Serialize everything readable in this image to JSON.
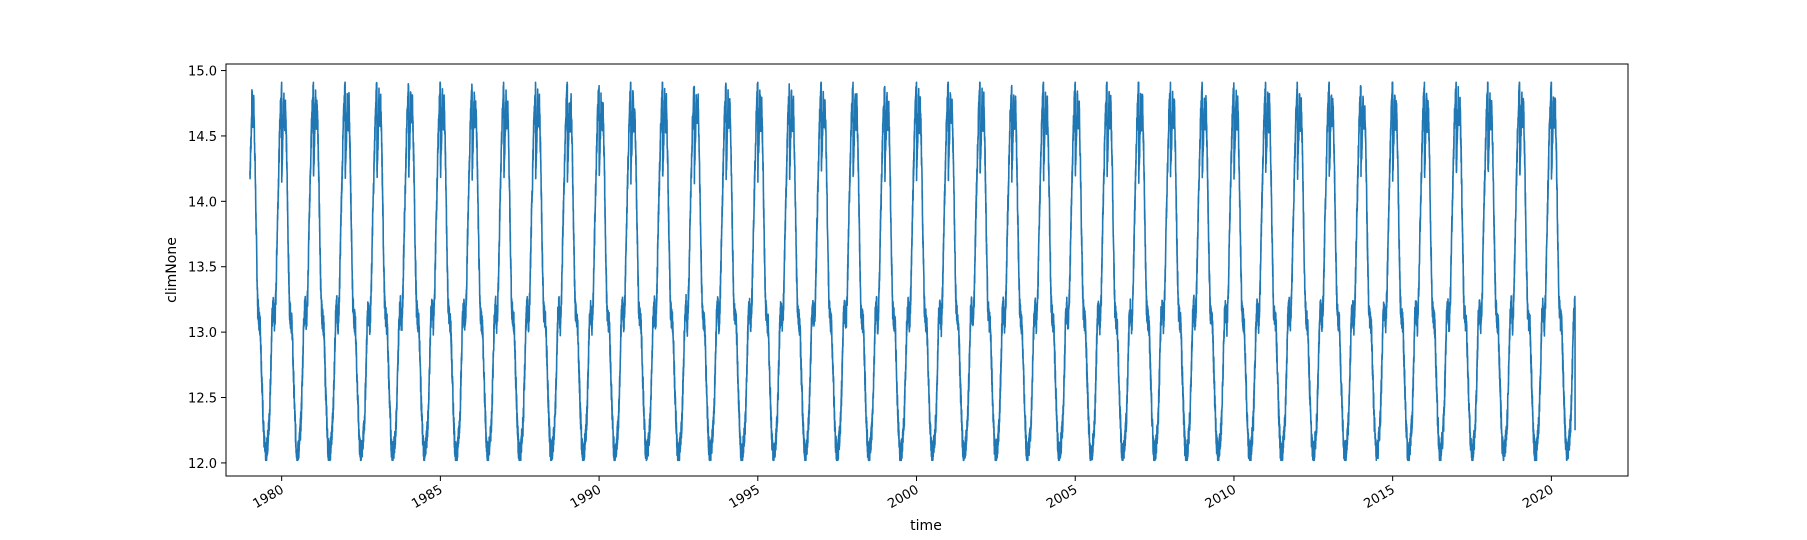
{
  "chart_data": {
    "type": "line",
    "title": "",
    "xlabel": "time",
    "ylabel": "climNone",
    "xlim": [
      "1978-04-01",
      "2022-06-01"
    ],
    "ylim": [
      11.9,
      15.05
    ],
    "x_ticks": [
      "1980",
      "1985",
      "1990",
      "1995",
      "2000",
      "2005",
      "2010",
      "2015",
      "2020"
    ],
    "y_ticks": [
      "12.0",
      "12.5",
      "13.0",
      "13.5",
      "14.0",
      "14.5",
      "15.0"
    ],
    "grid": false,
    "legend": "none",
    "series": [
      {
        "color": "#1f77b4",
        "x_start": "1979-01-01",
        "x_end": "2020-09-30",
        "start_value": 14.2,
        "end_value": 12.25,
        "period": "1 year",
        "annual_cycle": [
          {
            "day_of_year": 1,
            "value": 14.2
          },
          {
            "day_of_year": 15,
            "value": 14.5
          },
          {
            "day_of_year": 25,
            "value": 14.8
          },
          {
            "day_of_year": 35,
            "value": 14.6
          },
          {
            "day_of_year": 45,
            "value": 14.75
          },
          {
            "day_of_year": 60,
            "value": 14.3
          },
          {
            "day_of_year": 75,
            "value": 13.7
          },
          {
            "day_of_year": 90,
            "value": 13.2
          },
          {
            "day_of_year": 105,
            "value": 13.1
          },
          {
            "day_of_year": 120,
            "value": 13.05
          },
          {
            "day_of_year": 135,
            "value": 12.7
          },
          {
            "day_of_year": 150,
            "value": 12.4
          },
          {
            "day_of_year": 165,
            "value": 12.15
          },
          {
            "day_of_year": 180,
            "value": 12.05
          },
          {
            "day_of_year": 195,
            "value": 12.1
          },
          {
            "day_of_year": 210,
            "value": 12.2
          },
          {
            "day_of_year": 225,
            "value": 12.35
          },
          {
            "day_of_year": 240,
            "value": 12.7
          },
          {
            "day_of_year": 255,
            "value": 13.1
          },
          {
            "day_of_year": 270,
            "value": 13.2
          },
          {
            "day_of_year": 285,
            "value": 13.05
          },
          {
            "day_of_year": 300,
            "value": 13.3
          },
          {
            "day_of_year": 315,
            "value": 13.8
          },
          {
            "day_of_year": 330,
            "value": 14.2
          },
          {
            "day_of_year": 345,
            "value": 14.6
          },
          {
            "day_of_year": 365,
            "value": 14.9
          }
        ]
      }
    ]
  }
}
